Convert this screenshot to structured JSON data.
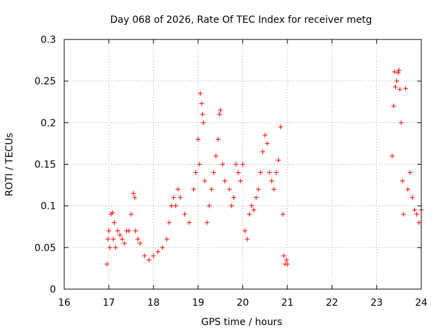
{
  "chart_data": {
    "type": "scatter",
    "title": "Day 068 of 2026, Rate Of TEC Index for receiver metg",
    "xlabel": "GPS time / hours",
    "ylabel": "ROTI / TECUs",
    "xlim": [
      16,
      24
    ],
    "ylim": [
      0,
      0.3
    ],
    "x_ticks": [
      16,
      17,
      18,
      19,
      20,
      21,
      22,
      23,
      24
    ],
    "y_ticks": [
      0,
      0.05,
      0.1,
      0.15,
      0.2,
      0.25,
      0.3
    ],
    "x_tick_labels": [
      "16",
      "17",
      "18",
      "19",
      "20",
      "21",
      "22",
      "23",
      "24"
    ],
    "y_tick_labels": [
      "0",
      "0.05",
      "0.1",
      "0.15",
      "0.2",
      "0.25",
      "0.3"
    ],
    "grid": true,
    "marker": "+",
    "marker_color": "#ff0000",
    "series": [
      {
        "name": "ROTI",
        "x": [
          16.96,
          16.98,
          17.0,
          17.02,
          17.05,
          17.08,
          17.1,
          17.12,
          17.15,
          17.2,
          17.25,
          17.3,
          17.35,
          17.4,
          17.45,
          17.5,
          17.55,
          17.58,
          17.6,
          17.65,
          17.7,
          17.8,
          17.9,
          18.0,
          18.1,
          18.2,
          18.3,
          18.35,
          18.4,
          18.45,
          18.5,
          18.55,
          18.6,
          18.7,
          18.8,
          18.9,
          18.95,
          19.0,
          19.03,
          19.05,
          19.08,
          19.1,
          19.12,
          19.15,
          19.2,
          19.25,
          19.3,
          19.35,
          19.4,
          19.45,
          19.48,
          19.5,
          19.55,
          19.6,
          19.7,
          19.75,
          19.8,
          19.85,
          19.9,
          19.95,
          20.0,
          20.05,
          20.1,
          20.15,
          20.2,
          20.25,
          20.3,
          20.35,
          20.4,
          20.45,
          20.5,
          20.55,
          20.6,
          20.65,
          20.7,
          20.75,
          20.8,
          20.85,
          20.9,
          20.92,
          20.95,
          20.98,
          21.0,
          23.35,
          23.38,
          23.4,
          23.42,
          23.45,
          23.48,
          23.5,
          23.52,
          23.55,
          23.58,
          23.6,
          23.65,
          23.7,
          23.75,
          23.8,
          23.85,
          23.9,
          23.95,
          24.0
        ],
        "y": [
          0.03,
          0.06,
          0.07,
          0.05,
          0.09,
          0.092,
          0.06,
          0.08,
          0.05,
          0.07,
          0.065,
          0.06,
          0.055,
          0.07,
          0.07,
          0.09,
          0.115,
          0.11,
          0.07,
          0.06,
          0.055,
          0.04,
          0.035,
          0.04,
          0.045,
          0.05,
          0.06,
          0.08,
          0.1,
          0.11,
          0.1,
          0.12,
          0.11,
          0.09,
          0.08,
          0.12,
          0.14,
          0.18,
          0.15,
          0.235,
          0.223,
          0.21,
          0.2,
          0.13,
          0.08,
          0.1,
          0.12,
          0.14,
          0.16,
          0.18,
          0.21,
          0.215,
          0.15,
          0.13,
          0.12,
          0.1,
          0.11,
          0.15,
          0.14,
          0.13,
          0.15,
          0.07,
          0.06,
          0.09,
          0.1,
          0.095,
          0.11,
          0.12,
          0.14,
          0.165,
          0.185,
          0.175,
          0.14,
          0.13,
          0.12,
          0.14,
          0.155,
          0.195,
          0.09,
          0.04,
          0.03,
          0.035,
          0.03,
          0.16,
          0.22,
          0.261,
          0.243,
          0.25,
          0.26,
          0.263,
          0.24,
          0.2,
          0.13,
          0.09,
          0.241,
          0.12,
          0.14,
          0.11,
          0.095,
          0.09,
          0.08,
          0.095
        ]
      }
    ]
  }
}
